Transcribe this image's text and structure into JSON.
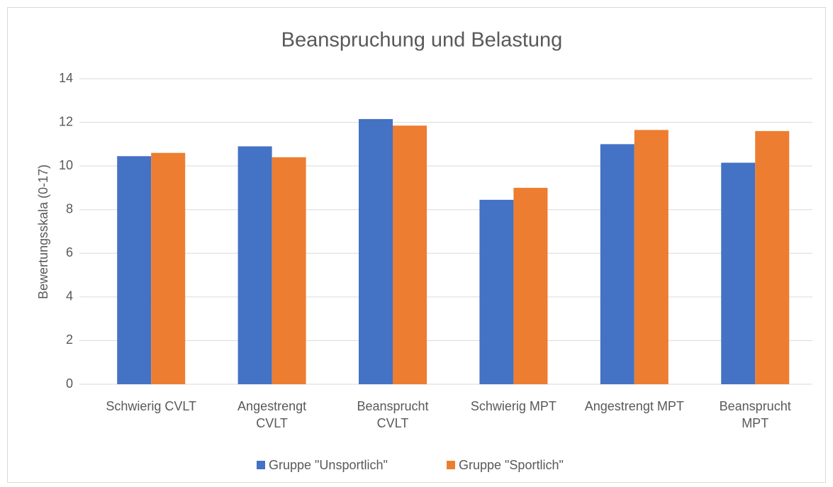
{
  "chart_data": {
    "type": "bar",
    "title": "Beanspruchung und Belastung",
    "y_label": "Bewertungsskala (0-17)",
    "categories": [
      "Schwierig CVLT",
      "Angestrengt\nCVLT",
      "Beansprucht\nCVLT",
      "Schwierig MPT",
      "Angestrengt MPT",
      "Beansprucht\nMPT"
    ],
    "series": [
      {
        "name": "Gruppe \"Unsportlich\"",
        "color": "#4472c4",
        "values": [
          10.45,
          10.9,
          12.15,
          8.45,
          11.0,
          10.15
        ]
      },
      {
        "name": "Gruppe \"Sportlich\"",
        "color": "#ed7d31",
        "values": [
          10.6,
          10.4,
          11.85,
          9.0,
          11.65,
          11.6
        ]
      }
    ],
    "ylim": [
      0,
      14
    ],
    "yticks": [
      0,
      2,
      4,
      6,
      8,
      10,
      12,
      14
    ],
    "grid": true,
    "legend": "bottom"
  }
}
